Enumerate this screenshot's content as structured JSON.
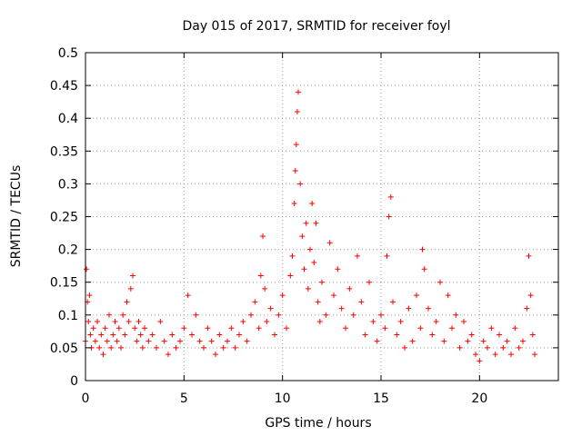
{
  "chart_data": {
    "type": "scatter",
    "title": "Day 015 of 2017, SRMTID for receiver foyl",
    "xlabel": "GPS time / hours",
    "ylabel": "SRMTID / TECUs",
    "xlim": [
      0,
      24
    ],
    "ylim": [
      0,
      0.5
    ],
    "x_ticks": [
      0,
      5,
      10,
      15,
      20
    ],
    "x_tick_labels": [
      "0",
      "5",
      "10",
      "15",
      "20"
    ],
    "y_ticks": [
      0,
      0.05,
      0.1,
      0.15,
      0.2,
      0.25,
      0.3,
      0.35,
      0.4,
      0.45,
      0.5
    ],
    "y_tick_labels": [
      "0",
      "0.05",
      "0.1",
      "0.15",
      "0.2",
      "0.25",
      "0.3",
      "0.35",
      "0.4",
      "0.45",
      "0.5"
    ],
    "grid": true,
    "marker": "+",
    "marker_color": "#ff0000",
    "series": [
      {
        "name": "SRMTID",
        "x": [
          0.0,
          0.05,
          0.1,
          0.15,
          0.2,
          0.25,
          0.3,
          0.4,
          0.5,
          0.6,
          0.7,
          0.8,
          0.9,
          1.0,
          1.1,
          1.2,
          1.3,
          1.4,
          1.5,
          1.6,
          1.7,
          1.8,
          1.9,
          2.0,
          2.1,
          2.2,
          2.3,
          2.4,
          2.5,
          2.6,
          2.7,
          2.8,
          2.9,
          3.0,
          3.2,
          3.4,
          3.6,
          3.8,
          4.0,
          4.2,
          4.4,
          4.6,
          4.8,
          5.0,
          5.2,
          5.4,
          5.6,
          5.8,
          6.0,
          6.2,
          6.4,
          6.6,
          6.8,
          7.0,
          7.2,
          7.4,
          7.6,
          7.8,
          8.0,
          8.2,
          8.4,
          8.6,
          8.8,
          8.9,
          9.0,
          9.1,
          9.2,
          9.4,
          9.6,
          9.8,
          10.0,
          10.2,
          10.4,
          10.5,
          10.6,
          10.65,
          10.7,
          10.75,
          10.8,
          10.9,
          11.0,
          11.1,
          11.2,
          11.3,
          11.4,
          11.5,
          11.6,
          11.7,
          11.8,
          11.9,
          12.0,
          12.2,
          12.4,
          12.6,
          12.8,
          13.0,
          13.2,
          13.4,
          13.6,
          13.8,
          14.0,
          14.2,
          14.4,
          14.6,
          14.8,
          15.0,
          15.2,
          15.3,
          15.4,
          15.5,
          15.6,
          15.8,
          16.0,
          16.2,
          16.4,
          16.6,
          16.8,
          17.0,
          17.1,
          17.2,
          17.4,
          17.6,
          17.8,
          18.0,
          18.2,
          18.4,
          18.6,
          18.8,
          19.0,
          19.2,
          19.4,
          19.6,
          19.8,
          20.0,
          20.2,
          20.4,
          20.6,
          20.8,
          21.0,
          21.2,
          21.4,
          21.6,
          21.8,
          22.0,
          22.2,
          22.4,
          22.5,
          22.6,
          22.7,
          22.8
        ],
        "y": [
          0.06,
          0.17,
          0.12,
          0.09,
          0.13,
          0.07,
          0.05,
          0.08,
          0.06,
          0.09,
          0.05,
          0.07,
          0.04,
          0.08,
          0.06,
          0.1,
          0.05,
          0.07,
          0.09,
          0.06,
          0.08,
          0.05,
          0.1,
          0.07,
          0.12,
          0.09,
          0.14,
          0.16,
          0.08,
          0.06,
          0.09,
          0.07,
          0.05,
          0.08,
          0.06,
          0.07,
          0.05,
          0.09,
          0.06,
          0.04,
          0.07,
          0.05,
          0.06,
          0.08,
          0.13,
          0.07,
          0.1,
          0.06,
          0.05,
          0.08,
          0.06,
          0.04,
          0.07,
          0.05,
          0.06,
          0.08,
          0.05,
          0.07,
          0.09,
          0.06,
          0.1,
          0.12,
          0.08,
          0.16,
          0.22,
          0.14,
          0.09,
          0.11,
          0.07,
          0.1,
          0.13,
          0.08,
          0.16,
          0.19,
          0.27,
          0.32,
          0.36,
          0.41,
          0.44,
          0.3,
          0.22,
          0.17,
          0.24,
          0.14,
          0.2,
          0.27,
          0.18,
          0.24,
          0.12,
          0.09,
          0.15,
          0.1,
          0.21,
          0.13,
          0.17,
          0.11,
          0.08,
          0.14,
          0.1,
          0.19,
          0.12,
          0.07,
          0.15,
          0.09,
          0.06,
          0.1,
          0.08,
          0.19,
          0.25,
          0.28,
          0.12,
          0.07,
          0.09,
          0.05,
          0.11,
          0.06,
          0.13,
          0.08,
          0.2,
          0.17,
          0.11,
          0.07,
          0.09,
          0.15,
          0.06,
          0.13,
          0.08,
          0.1,
          0.05,
          0.09,
          0.06,
          0.07,
          0.04,
          0.03,
          0.06,
          0.05,
          0.08,
          0.04,
          0.07,
          0.05,
          0.06,
          0.04,
          0.08,
          0.05,
          0.06,
          0.11,
          0.19,
          0.13,
          0.07,
          0.04
        ]
      }
    ]
  }
}
